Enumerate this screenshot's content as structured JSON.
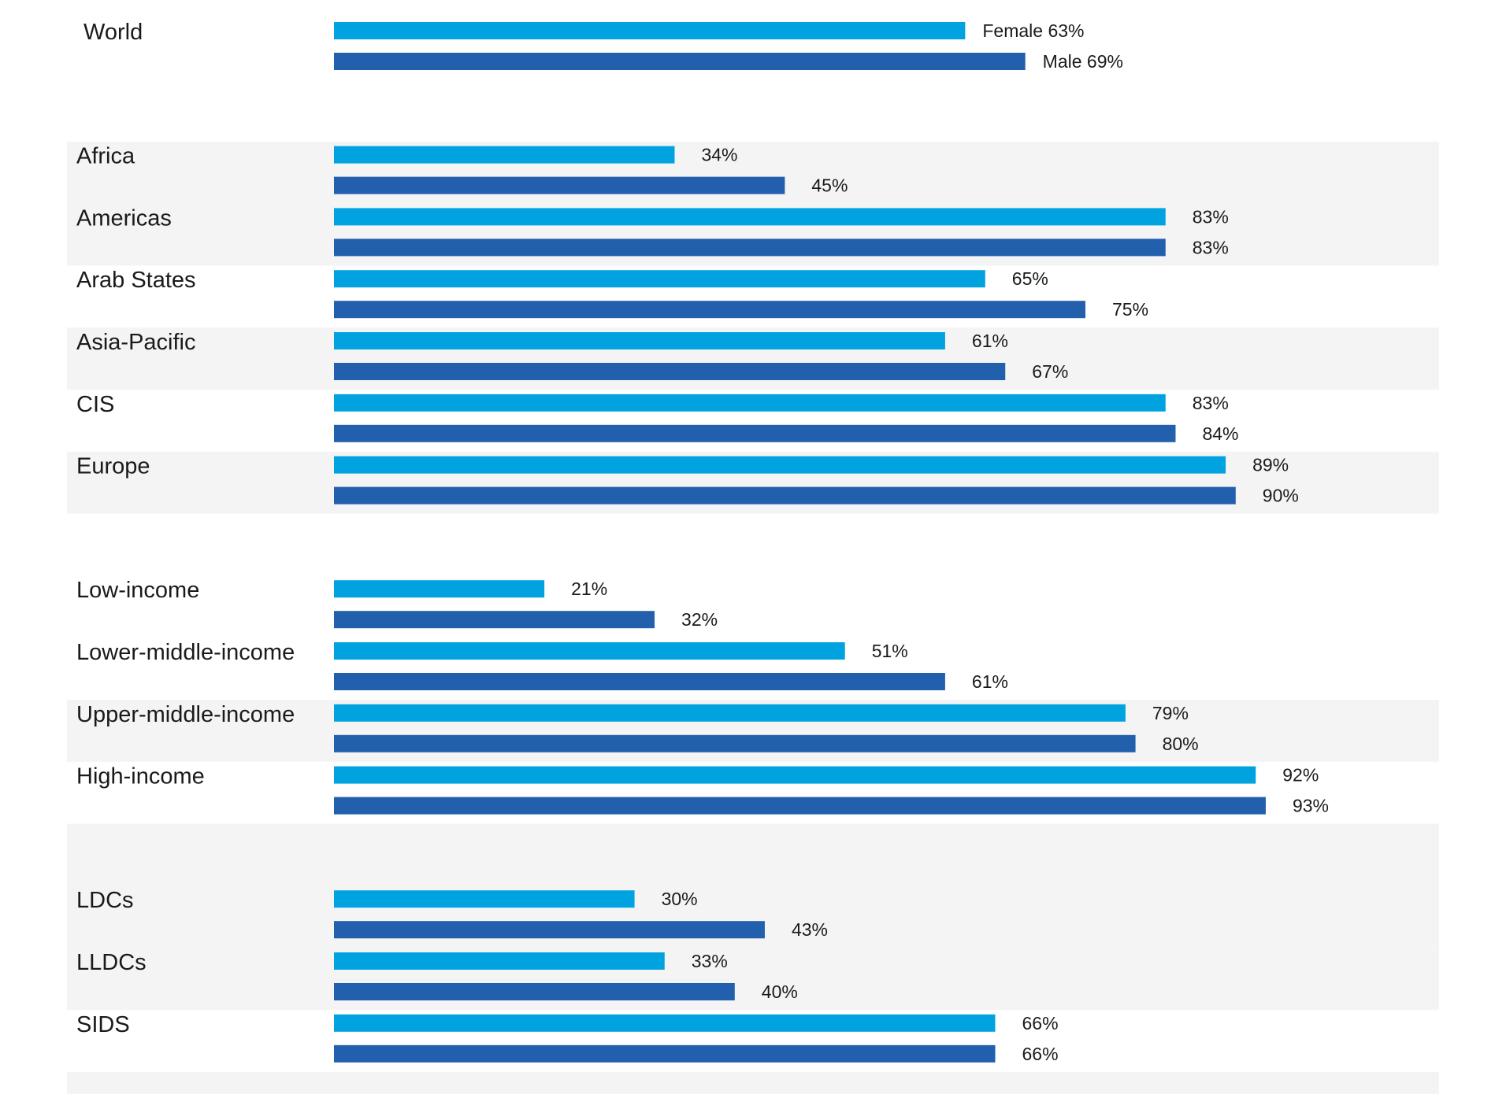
{
  "chart_data": {
    "type": "bar",
    "orientation": "horizontal",
    "xlim": [
      0,
      100
    ],
    "value_suffix": "%",
    "series": [
      {
        "name": "Female",
        "color": "#00a3e0"
      },
      {
        "name": "Male",
        "color": "#2260ae"
      }
    ],
    "groups": [
      {
        "category": "World",
        "female": 63,
        "male": 69,
        "show_series_names": true
      },
      {
        "spacer": true,
        "shaded": true
      },
      {
        "category": "Africa",
        "female": 34,
        "male": 45
      },
      {
        "category": "Americas",
        "female": 83,
        "male": 83
      },
      {
        "category": "Arab States",
        "female": 65,
        "male": 75
      },
      {
        "category": "Asia-Pacific",
        "female": 61,
        "male": 67
      },
      {
        "category": "CIS",
        "female": 83,
        "male": 84
      },
      {
        "category": "Europe",
        "female": 89,
        "male": 90
      },
      {
        "spacer": true,
        "shaded": false
      },
      {
        "category": "Low-income",
        "female": 21,
        "male": 32
      },
      {
        "category": "Lower-middle-income",
        "female": 51,
        "male": 61
      },
      {
        "category": "Upper-middle-income",
        "female": 79,
        "male": 80
      },
      {
        "category": "High-income",
        "female": 92,
        "male": 93
      },
      {
        "spacer": true,
        "shaded": true
      },
      {
        "category": "LDCs",
        "female": 30,
        "male": 43
      },
      {
        "category": "LLDCs",
        "female": 33,
        "male": 40
      },
      {
        "category": "SIDS",
        "female": 66,
        "male": 66
      }
    ],
    "row_band_colors": [
      "#ffffff",
      "#f4f4f4"
    ]
  }
}
